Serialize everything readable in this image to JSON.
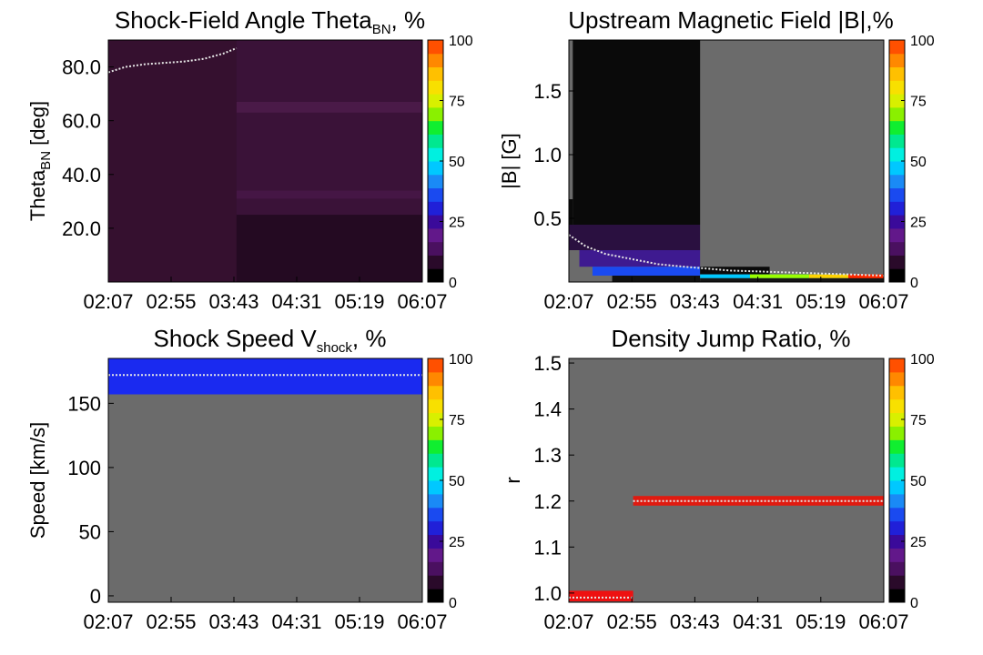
{
  "chart_data": [
    {
      "type": "heatmap",
      "title": "Shock-Field Angle Theta",
      "title_sub": "BN",
      "title_suffix": ", %",
      "ylabel": "Theta",
      "ylabel_sub": "BN",
      "ylabel_suffix": " [deg]",
      "xlim": [
        "02:07",
        "06:07"
      ],
      "ylim": [
        0,
        90
      ],
      "xticks": [
        "02:07",
        "02:55",
        "03:43",
        "04:31",
        "05:19",
        "06:07"
      ],
      "yticks": [
        {
          "value": 20,
          "label": "20.0"
        },
        {
          "value": 40,
          "label": "40.0"
        },
        {
          "value": 60,
          "label": "60.0"
        },
        {
          "value": 80,
          "label": "80.0"
        }
      ],
      "colorbar": {
        "label": "%",
        "range": [
          0,
          100
        ],
        "ticks": [
          "0",
          "25",
          "50",
          "75",
          "100"
        ]
      },
      "background": "#2f0f2f",
      "blocks": [
        {
          "x0": "02:07",
          "x1": "03:45",
          "y0": 0,
          "y1": 90,
          "color": "#35102f"
        },
        {
          "x0": "03:45",
          "x1": "06:07",
          "y0": 25,
          "y1": 90,
          "color": "#3a1238"
        },
        {
          "x0": "03:45",
          "x1": "06:07",
          "y0": 0,
          "y1": 25,
          "color": "#240a22"
        },
        {
          "x0": "03:45",
          "x1": "06:07",
          "y0": 63,
          "y1": 67,
          "color": "#4a1a48"
        },
        {
          "x0": "03:45",
          "x1": "06:07",
          "y0": 31,
          "y1": 34,
          "color": "#451645"
        }
      ],
      "series": [
        {
          "x": [
            "02:07",
            "02:20",
            "02:35",
            "02:50",
            "03:05",
            "03:20",
            "03:35",
            "03:45"
          ],
          "y": [
            78,
            80,
            81,
            81.5,
            82,
            83,
            85,
            87
          ]
        }
      ]
    },
    {
      "type": "heatmap",
      "title": "Upstream Magnetic Field |B|,%",
      "ylabel": "|B| [G]",
      "xlim": [
        "02:07",
        "06:07"
      ],
      "ylim": [
        0,
        1.9
      ],
      "xticks": [
        "02:07",
        "02:55",
        "03:43",
        "04:31",
        "05:19",
        "06:07"
      ],
      "yticks": [
        {
          "value": 0.5,
          "label": "0.5"
        },
        {
          "value": 1.0,
          "label": "1.0"
        },
        {
          "value": 1.5,
          "label": "1.5"
        }
      ],
      "colorbar": {
        "label": "%",
        "range": [
          0,
          100
        ],
        "ticks": [
          "0",
          "25",
          "50",
          "75",
          "100"
        ]
      },
      "background": "#6b6b6b",
      "blocks": [
        {
          "x0": "02:10",
          "x1": "03:47",
          "y0": 0.45,
          "y1": 1.9,
          "color": "#0a0a0a"
        },
        {
          "x0": "02:07",
          "x1": "02:10",
          "y0": 0.35,
          "y1": 0.65,
          "color": "#0a0a0a"
        },
        {
          "x0": "02:07",
          "x1": "03:47",
          "y0": 0.25,
          "y1": 0.45,
          "color": "#2a1040"
        },
        {
          "x0": "02:15",
          "x1": "03:47",
          "y0": 0.12,
          "y1": 0.25,
          "color": "#3e1a90"
        },
        {
          "x0": "02:25",
          "x1": "03:47",
          "y0": 0.05,
          "y1": 0.12,
          "color": "#1a4af0"
        },
        {
          "x0": "02:40",
          "x1": "03:47",
          "y0": 0.0,
          "y1": 0.05,
          "color": "#111111"
        },
        {
          "x0": "03:47",
          "x1": "04:40",
          "y0": 0.06,
          "y1": 0.12,
          "color": "#0a0a0a"
        },
        {
          "x0": "03:47",
          "x1": "05:40",
          "y0": 0.03,
          "y1": 0.06,
          "color": "#00c8ff"
        },
        {
          "x0": "04:25",
          "x1": "05:10",
          "y0": 0.03,
          "y1": 0.06,
          "color": "#9aff00"
        },
        {
          "x0": "05:10",
          "x1": "05:40",
          "y0": 0.03,
          "y1": 0.06,
          "color": "#ffd200"
        },
        {
          "x0": "05:40",
          "x1": "06:07",
          "y0": 0.02,
          "y1": 0.06,
          "color": "#ff2a00"
        },
        {
          "x0": "03:47",
          "x1": "06:07",
          "y0": 0.0,
          "y1": 0.03,
          "color": "#151515"
        }
      ],
      "series": [
        {
          "x": [
            "02:07",
            "02:20",
            "02:35",
            "02:55",
            "03:15",
            "03:35",
            "03:47",
            "04:10",
            "04:40",
            "05:10",
            "05:40",
            "06:07"
          ],
          "y": [
            0.37,
            0.28,
            0.22,
            0.18,
            0.14,
            0.12,
            0.11,
            0.09,
            0.08,
            0.07,
            0.06,
            0.05
          ]
        }
      ]
    },
    {
      "type": "heatmap",
      "title": "Shock Speed V",
      "title_sub": "shock",
      "title_suffix": ", %",
      "ylabel": "Speed [km/s]",
      "xlim": [
        "02:07",
        "06:07"
      ],
      "ylim": [
        -5,
        185
      ],
      "xticks": [
        "02:07",
        "02:55",
        "03:43",
        "04:31",
        "05:19",
        "06:07"
      ],
      "yticks": [
        {
          "value": 0,
          "label": "0"
        },
        {
          "value": 50,
          "label": "50"
        },
        {
          "value": 100,
          "label": "100"
        },
        {
          "value": 150,
          "label": "150"
        }
      ],
      "colorbar": {
        "label": "%",
        "range": [
          0,
          100
        ],
        "ticks": [
          "0",
          "25",
          "50",
          "75",
          "100"
        ]
      },
      "background": "#6b6b6b",
      "blocks": [
        {
          "x0": "02:07",
          "x1": "06:07",
          "y0": 157,
          "y1": 185,
          "color": "#1a2af0"
        }
      ],
      "series": [
        {
          "x": [
            "02:07",
            "06:07"
          ],
          "y": [
            172,
            172
          ]
        }
      ]
    },
    {
      "type": "heatmap",
      "title": "Density Jump Ratio, %",
      "ylabel": "r",
      "xlim": [
        "02:07",
        "06:07"
      ],
      "ylim": [
        0.98,
        1.51
      ],
      "xticks": [
        "02:07",
        "02:55",
        "03:43",
        "04:31",
        "05:19",
        "06:07"
      ],
      "yticks": [
        {
          "value": 1.0,
          "label": "1.0"
        },
        {
          "value": 1.1,
          "label": "1.1"
        },
        {
          "value": 1.2,
          "label": "1.2"
        },
        {
          "value": 1.3,
          "label": "1.3"
        },
        {
          "value": 1.4,
          "label": "1.4"
        },
        {
          "value": 1.5,
          "label": "1.5"
        }
      ],
      "colorbar": {
        "label": "%",
        "range": [
          0,
          100
        ],
        "ticks": [
          "0",
          "25",
          "50",
          "75",
          "100"
        ]
      },
      "background": "#6b6b6b",
      "blocks": [
        {
          "x0": "02:07",
          "x1": "02:56",
          "y0": 0.982,
          "y1": 1.005,
          "color": "#ee1111"
        },
        {
          "x0": "02:56",
          "x1": "06:07",
          "y0": 1.19,
          "y1": 1.211,
          "color": "#e01a10"
        }
      ],
      "series": [
        {
          "x": [
            "02:07",
            "02:56"
          ],
          "y": [
            0.99,
            0.99
          ]
        },
        {
          "x": [
            "02:56",
            "06:07"
          ],
          "y": [
            1.2,
            1.2
          ]
        }
      ]
    }
  ]
}
